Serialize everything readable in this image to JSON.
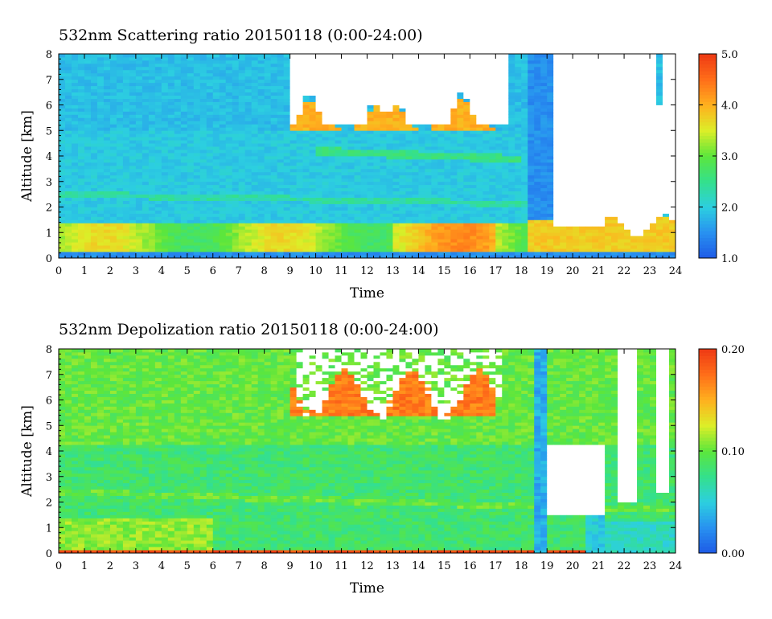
{
  "chart_data": [
    {
      "type": "heatmap",
      "title": "532nm Scattering ratio  20150118 (0:00-24:00)",
      "xlabel": "Time",
      "ylabel": "Altitude [km]",
      "xlim": [
        0,
        24
      ],
      "ylim": [
        0,
        8
      ],
      "x_ticks": [
        "0",
        "1",
        "2",
        "3",
        "4",
        "5",
        "6",
        "7",
        "8",
        "9",
        "10",
        "11",
        "12",
        "13",
        "14",
        "15",
        "16",
        "17",
        "18",
        "19",
        "20",
        "21",
        "22",
        "23",
        "24"
      ],
      "y_ticks": [
        "0",
        "1",
        "2",
        "3",
        "4",
        "5",
        "6",
        "7",
        "8"
      ],
      "colorbar": {
        "range": [
          1.0,
          5.0
        ],
        "ticks": [
          "1.0",
          "2.0",
          "3.0",
          "4.0",
          "5.0"
        ],
        "colors": [
          "#1e5ae6",
          "#2891f0",
          "#2ccfe0",
          "#34e08c",
          "#5ce63c",
          "#dcee28",
          "#ffb01e",
          "#ff6e19",
          "#ee3a14"
        ]
      }
    },
    {
      "type": "heatmap",
      "title": "532nm Depolization ratio  20150118 (0:00-24:00)",
      "xlabel": "Time",
      "ylabel": "Altitude [km]",
      "xlim": [
        0,
        24
      ],
      "ylim": [
        0,
        8
      ],
      "x_ticks": [
        "0",
        "1",
        "2",
        "3",
        "4",
        "5",
        "6",
        "7",
        "8",
        "9",
        "10",
        "11",
        "12",
        "13",
        "14",
        "15",
        "16",
        "17",
        "18",
        "19",
        "20",
        "21",
        "22",
        "23",
        "24"
      ],
      "y_ticks": [
        "0",
        "1",
        "2",
        "3",
        "4",
        "5",
        "6",
        "7",
        "8"
      ],
      "colorbar": {
        "range": [
          0.0,
          0.2
        ],
        "ticks": [
          "0.00",
          "0.10",
          "0.20"
        ],
        "colors": [
          "#1e5ae6",
          "#2891f0",
          "#2ccfe0",
          "#34e08c",
          "#5ce63c",
          "#dcee28",
          "#ffb01e",
          "#ff6e19",
          "#ee3a14"
        ]
      }
    }
  ]
}
